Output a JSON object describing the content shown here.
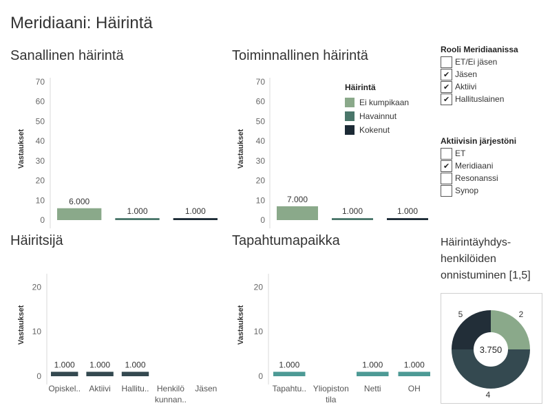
{
  "dashboard_title": "Meridiaani: Häirintä",
  "colors": {
    "ei_kumpikaan": "#8aa98a",
    "havainnut": "#4a766a",
    "kokenut": "#1c2a35",
    "harassers_bar": "#344950",
    "location_bar": "#4d9a95",
    "pie_2": "#8aa98a",
    "pie_4": "#344950",
    "pie_5": "#222e38"
  },
  "sheets": {
    "verbal": {
      "title": "Sanallinen häirintä",
      "y_label": "Vastaukset"
    },
    "functional": {
      "title": "Toiminnallinen häirintä",
      "y_label": "Vastaukset"
    },
    "harasser": {
      "title": "Häiritsijä",
      "y_label": "Vastaukset"
    },
    "location": {
      "title": "Tapahtumapaikka",
      "y_label": "Vastaukset"
    }
  },
  "legend": {
    "title": "Häirintä",
    "items": [
      {
        "label": "Ei kumpikaan",
        "color": "#8aa98a"
      },
      {
        "label": "Havainnut",
        "color": "#4a766a"
      },
      {
        "label": "Kokenut",
        "color": "#1c2a35"
      }
    ]
  },
  "filters": {
    "role": {
      "title": "Rooli Meridiaanissa",
      "items": [
        {
          "label": "ET/Ei jäsen",
          "checked": false
        },
        {
          "label": "Jäsen",
          "checked": true
        },
        {
          "label": "Aktiivi",
          "checked": true
        },
        {
          "label": "Hallituslainen",
          "checked": true
        }
      ]
    },
    "org": {
      "title": "Aktiivisin järjestöni",
      "items": [
        {
          "label": "ET",
          "checked": false
        },
        {
          "label": "Meridiaani",
          "checked": true
        },
        {
          "label": "Resonanssi",
          "checked": false
        },
        {
          "label": "Synop",
          "checked": false
        }
      ]
    }
  },
  "pie_title_lines": [
    "Häirintäyhdys-",
    "henkilöiden",
    "onnistuminen [1,5]"
  ],
  "chart_data": [
    {
      "type": "bar",
      "title": "Sanallinen häirintä",
      "ylabel": "Vastaukset",
      "ylim": [
        0,
        72
      ],
      "yticks": [
        0,
        10,
        20,
        30,
        40,
        50,
        60,
        70
      ],
      "categories": [
        "Ei kumpikaan",
        "Havainnut",
        "Kokenut"
      ],
      "values": [
        6,
        1,
        1
      ],
      "data_labels": [
        "6.000",
        "1.000",
        "1.000"
      ],
      "grid": false
    },
    {
      "type": "bar",
      "title": "Toiminnallinen häirintä",
      "ylabel": "Vastaukset",
      "ylim": [
        0,
        72
      ],
      "yticks": [
        0,
        10,
        20,
        30,
        40,
        50,
        60,
        70
      ],
      "categories": [
        "Ei kumpikaan",
        "Havainnut",
        "Kokenut"
      ],
      "values": [
        7,
        1,
        1
      ],
      "data_labels": [
        "7.000",
        "1.000",
        "1.000"
      ],
      "legend": "top-right",
      "grid": false
    },
    {
      "type": "bar",
      "title": "Häiritsijä",
      "ylabel": "Vastaukset",
      "ylim": [
        0,
        23
      ],
      "yticks": [
        0,
        10,
        20
      ],
      "categories": [
        "Opiskel..",
        "Aktiivi",
        "Hallitu..",
        "Henkilö kunnan..",
        "Jäsen"
      ],
      "category_lines": [
        [
          "Opiskel.."
        ],
        [
          "Aktiivi"
        ],
        [
          "Hallitu.."
        ],
        [
          "Henkilö",
          "kunnan.."
        ],
        [
          "Jäsen"
        ]
      ],
      "values": [
        1,
        1,
        1,
        null,
        null
      ],
      "data_labels": [
        "1.000",
        "1.000",
        "1.000",
        "",
        ""
      ],
      "grid": false
    },
    {
      "type": "bar",
      "title": "Tapahtumapaikka",
      "ylabel": "Vastaukset",
      "ylim": [
        0,
        23
      ],
      "yticks": [
        0,
        10,
        20
      ],
      "categories": [
        "Tapahtu..",
        "Yliopiston tila",
        "Netti",
        "OH"
      ],
      "category_lines": [
        [
          "Tapahtu.."
        ],
        [
          "Yliopiston",
          "tila"
        ],
        [
          "Netti"
        ],
        [
          "OH"
        ]
      ],
      "values": [
        1,
        null,
        1,
        1
      ],
      "data_labels": [
        "1.000",
        "",
        "1.000",
        "1.000"
      ],
      "grid": false
    },
    {
      "type": "pie",
      "title": "Häirintäyhdys- henkilöiden onnistuminen [1,5]",
      "labels": [
        "2",
        "4",
        "5"
      ],
      "values": [
        1,
        2,
        1
      ],
      "center_label": "3.750"
    }
  ]
}
